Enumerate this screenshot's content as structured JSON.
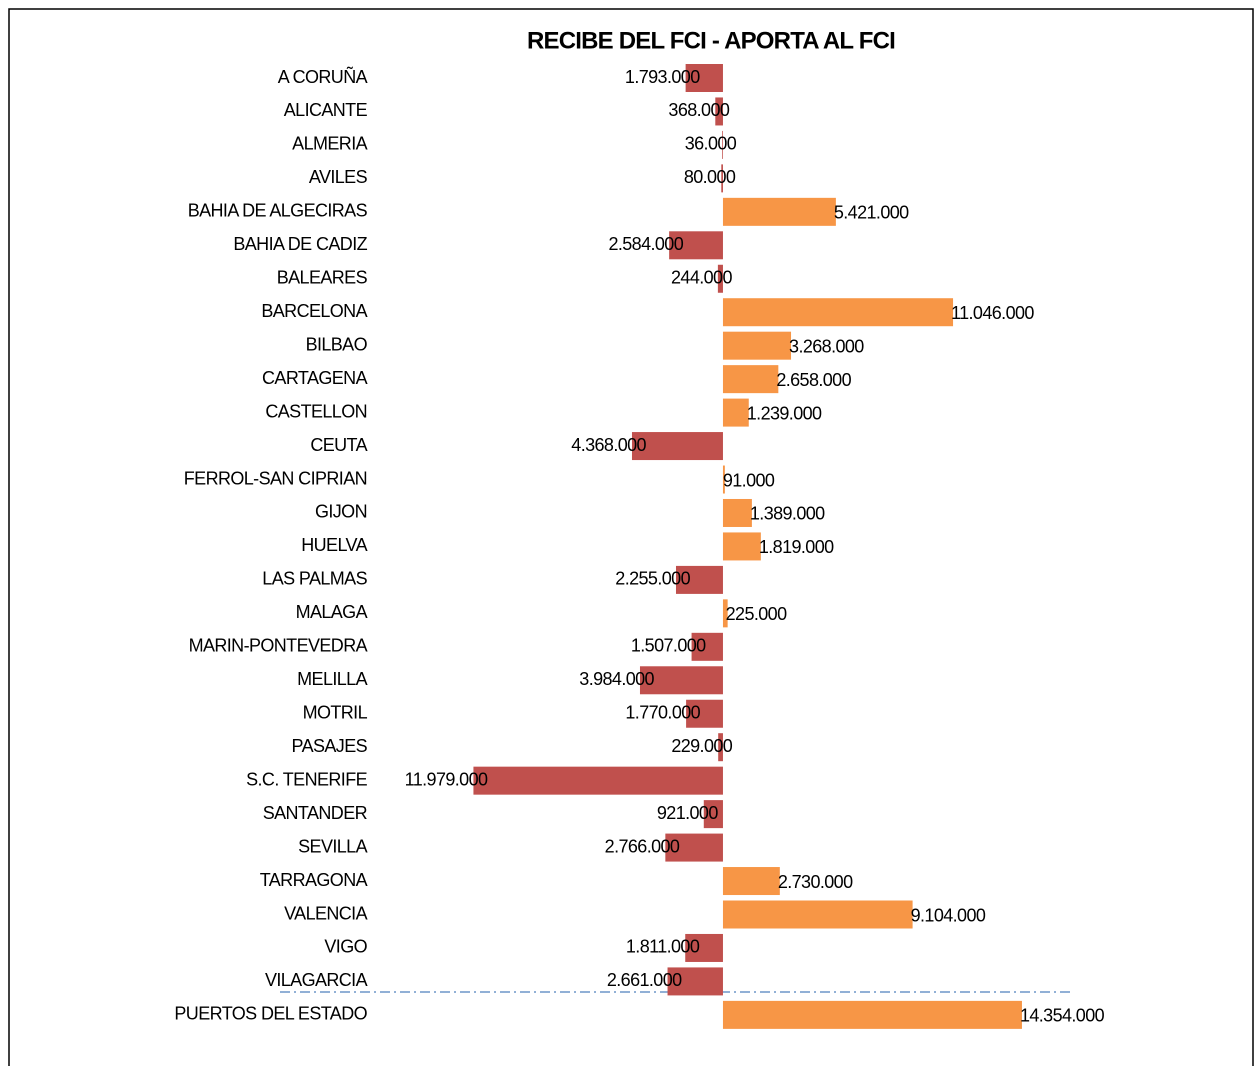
{
  "chart_data": {
    "type": "bar",
    "orientation": "horizontal",
    "title": "RECIBE DEL FCI  -  APORTA AL FCI",
    "categories": [
      "A CORUÑA",
      "ALICANTE",
      "ALMERIA",
      "AVILES",
      "BAHIA DE ALGECIRAS",
      "BAHIA DE CADIZ",
      "BALEARES",
      "BARCELONA",
      "BILBAO",
      "CARTAGENA",
      "CASTELLON",
      "CEUTA",
      "FERROL-SAN CIPRIAN",
      "GIJON",
      "HUELVA",
      "LAS PALMAS",
      "MALAGA",
      "MARIN-PONTEVEDRA",
      "MELILLA",
      "MOTRIL",
      "PASAJES",
      "S.C. TENERIFE",
      "SANTANDER",
      "SEVILLA",
      "TARRAGONA",
      "VALENCIA",
      "VIGO",
      "VILAGARCIA",
      "PUERTOS DEL ESTADO"
    ],
    "values": [
      -1793000,
      -368000,
      -36000,
      -80000,
      5421000,
      -2584000,
      -244000,
      11046000,
      3268000,
      2658000,
      1239000,
      -4368000,
      91000,
      1389000,
      1819000,
      -2255000,
      225000,
      -1507000,
      -3984000,
      -1770000,
      -229000,
      -11979000,
      -921000,
      -2766000,
      2730000,
      9104000,
      -1811000,
      -2661000,
      14354000
    ],
    "value_labels": [
      "1.793.000",
      "368.000",
      "36.000",
      "80.000",
      "5.421.000",
      "2.584.000",
      "244.000",
      "11.046.000",
      "3.268.000",
      "2.658.000",
      "1.239.000",
      "4.368.000",
      "91.000",
      "1.389.000",
      "1.819.000",
      "2.255.000",
      "225.000",
      "1.507.000",
      "3.984.000",
      "1.770.000",
      "229.000",
      "11.979.000",
      "921.000",
      "2.766.000",
      "2.730.000",
      "9.104.000",
      "1.811.000",
      "2.661.000",
      "14.354.000"
    ],
    "color": "#f79646",
    "negative_color": "#c0504d",
    "xlim": [
      -12000000,
      14500000
    ]
  }
}
